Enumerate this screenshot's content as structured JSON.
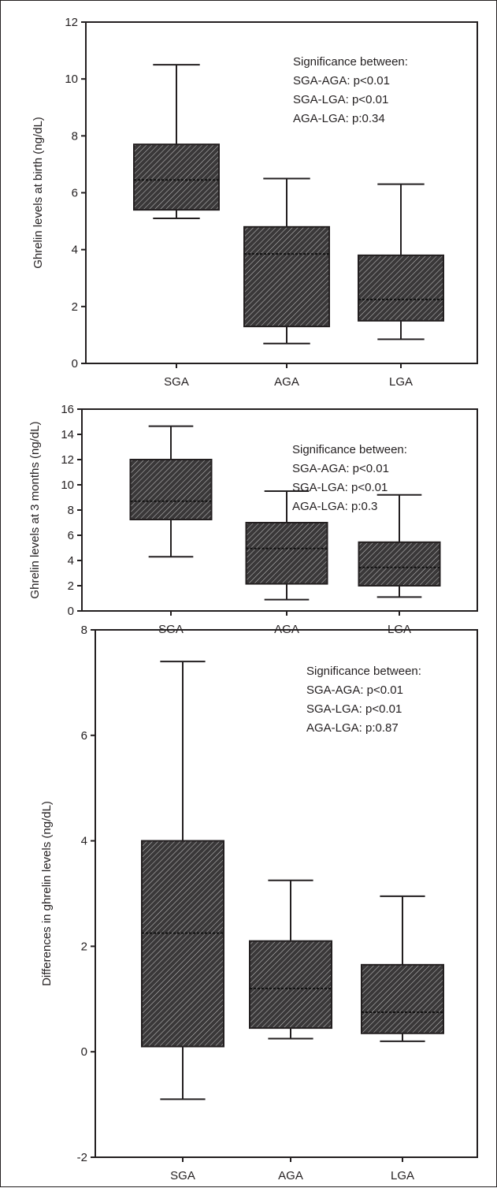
{
  "chart_data": [
    {
      "type": "box",
      "title": "",
      "xlabel": "",
      "ylabel": "Ghrelin levels at birth (ng/dL)",
      "ylim": [
        0,
        12
      ],
      "yticks": [
        0,
        2,
        4,
        6,
        8,
        10,
        12
      ],
      "categories": [
        "SGA",
        "AGA",
        "LGA"
      ],
      "boxes": [
        {
          "category": "SGA",
          "min": 5.1,
          "q1": 5.4,
          "median": 6.45,
          "q3": 7.7,
          "max": 10.5
        },
        {
          "category": "AGA",
          "min": 0.7,
          "q1": 1.3,
          "median": 3.85,
          "q3": 4.8,
          "max": 6.5
        },
        {
          "category": "LGA",
          "min": 0.85,
          "q1": 1.5,
          "median": 2.25,
          "q3": 3.8,
          "max": 6.3
        }
      ],
      "annotations": [
        "Significance between:",
        "SGA-AGA: p<0.01",
        "SGA-LGA: p<0.01",
        "AGA-LGA: p:0.34"
      ]
    },
    {
      "type": "box",
      "title": "",
      "xlabel": "",
      "ylabel": "Ghrelin levels at 3 months (ng/dL)",
      "ylim": [
        0,
        16
      ],
      "yticks": [
        0,
        2,
        4,
        6,
        8,
        10,
        12,
        14,
        16
      ],
      "categories": [
        "SGA",
        "AGA",
        "LGA"
      ],
      "boxes": [
        {
          "category": "SGA",
          "min": 4.3,
          "q1": 7.25,
          "median": 8.7,
          "q3": 12.0,
          "max": 14.65
        },
        {
          "category": "AGA",
          "min": 0.9,
          "q1": 2.15,
          "median": 4.95,
          "q3": 7.0,
          "max": 9.5
        },
        {
          "category": "LGA",
          "min": 1.1,
          "q1": 2.0,
          "median": 3.45,
          "q3": 5.45,
          "max": 9.2
        }
      ],
      "annotations": [
        "Significance between:",
        "SGA-AGA: p<0.01",
        "SGA-LGA: p<0.01",
        "AGA-LGA: p:0.3"
      ]
    },
    {
      "type": "box",
      "title": "",
      "xlabel": "",
      "ylabel": "Differences in ghrelin levels (ng/dL)",
      "ylim": [
        -2,
        8
      ],
      "yticks": [
        -2,
        0,
        2,
        4,
        6,
        8
      ],
      "categories": [
        "SGA",
        "AGA",
        "LGA"
      ],
      "boxes": [
        {
          "category": "SGA",
          "min": -0.9,
          "q1": 0.1,
          "median": 2.25,
          "q3": 4.0,
          "max": 7.4
        },
        {
          "category": "AGA",
          "min": 0.25,
          "q1": 0.45,
          "median": 1.2,
          "q3": 2.1,
          "max": 3.25
        },
        {
          "category": "LGA",
          "min": 0.2,
          "q1": 0.35,
          "median": 0.75,
          "q3": 1.65,
          "max": 2.95
        }
      ],
      "annotations": [
        "Significance between:",
        "SGA-AGA: p<0.01",
        "SGA-LGA: p<0.01",
        "AGA-LGA: p:0.87"
      ]
    }
  ]
}
